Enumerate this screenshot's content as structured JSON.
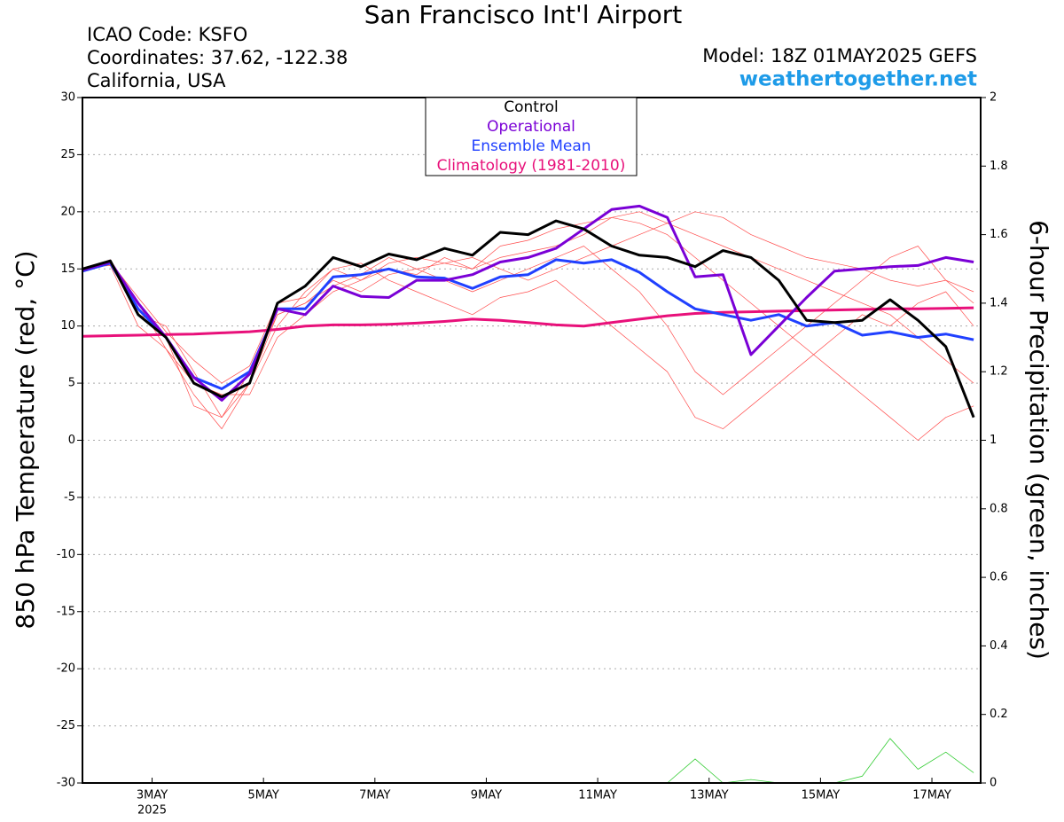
{
  "chart_data": {
    "type": "line",
    "title": "San Francisco Int'l Airport",
    "info_lines": [
      "ICAO Code: KSFO",
      "Coordinates: 37.62, -122.38",
      "California, USA"
    ],
    "model": "Model: 18Z 01MAY2025 GEFS",
    "site": "weathertogether.net",
    "ylabel": "850 hPa Temperature (red, °C)",
    "y2label": "6-hour Precipitation (green, inches)",
    "x": [
      1.75,
      2.25,
      2.75,
      3.25,
      3.75,
      4.25,
      4.75,
      5.25,
      5.75,
      6.25,
      6.75,
      7.25,
      7.75,
      8.25,
      8.75,
      9.25,
      9.75,
      10.25,
      10.75,
      11.25,
      11.75,
      12.25,
      12.75,
      13.25,
      13.75,
      14.25,
      14.75,
      15.25,
      15.75,
      16.25,
      16.75,
      17.25,
      17.75
    ],
    "xlim": [
      1.75,
      17.875
    ],
    "xticks": [
      {
        "value": 3,
        "label": "3MAY"
      },
      {
        "value": 5,
        "label": "5MAY"
      },
      {
        "value": 7,
        "label": "7MAY"
      },
      {
        "value": 9,
        "label": "9MAY"
      },
      {
        "value": 11,
        "label": "11MAY"
      },
      {
        "value": 13,
        "label": "13MAY"
      },
      {
        "value": 15,
        "label": "15MAY"
      },
      {
        "value": 17,
        "label": "17MAY"
      }
    ],
    "xtick_year": "2025",
    "ylim": [
      -30,
      30
    ],
    "yticks": [
      -30,
      -25,
      -20,
      -15,
      -10,
      -5,
      0,
      5,
      10,
      15,
      20,
      25,
      30
    ],
    "y2lim": [
      0,
      2
    ],
    "y2ticks": [
      0,
      0.2,
      0.4,
      0.6,
      0.8,
      1,
      1.2,
      1.4,
      1.6,
      1.8,
      2
    ],
    "grid": true,
    "series": [
      {
        "name": "Control",
        "color": "#000000",
        "width": 3,
        "values": [
          15,
          15.7,
          11,
          9,
          5,
          3.8,
          5,
          12,
          13.5,
          16,
          15.2,
          16.3,
          15.8,
          16.8,
          16.2,
          18.2,
          18,
          19.2,
          18.5,
          17,
          16.2,
          16,
          15.2,
          16.6,
          16,
          14,
          10.5,
          10.3,
          10.5,
          12.3,
          10.5,
          8.2,
          2
        ]
      },
      {
        "name": "Operational",
        "color": "#7a00d6",
        "width": 3,
        "values": [
          14.9,
          15.6,
          12,
          9,
          5.5,
          3.5,
          5.8,
          11.5,
          11,
          13.5,
          12.6,
          12.5,
          14,
          14,
          14.5,
          15.6,
          16,
          16.8,
          18.5,
          20.2,
          20.5,
          19.5,
          14.3,
          14.5,
          7.5,
          10,
          12.5,
          14.8,
          15,
          15.2,
          15.3,
          16,
          15.6
        ]
      },
      {
        "name": "Ensemble Mean",
        "color": "#2040ff",
        "width": 3,
        "values": [
          14.8,
          15.5,
          11.5,
          9,
          5.5,
          4.5,
          6,
          11.5,
          11.5,
          14.3,
          14.5,
          15,
          14.3,
          14.2,
          13.3,
          14.3,
          14.5,
          15.8,
          15.5,
          15.8,
          14.7,
          13,
          11.5,
          11,
          10.5,
          11,
          10,
          10.3,
          9.2,
          9.5,
          9,
          9.3,
          8.8
        ]
      },
      {
        "name": "Climatology (1981-2010)",
        "color": "#e8107a",
        "width": 3,
        "values": [
          9.1,
          9.15,
          9.2,
          9.25,
          9.3,
          9.4,
          9.5,
          9.7,
          10,
          10.1,
          10.1,
          10.15,
          10.25,
          10.4,
          10.6,
          10.5,
          10.3,
          10.1,
          10,
          10.3,
          10.6,
          10.9,
          11.1,
          11.2,
          11.25,
          11.3,
          11.35,
          11.4,
          11.45,
          11.5,
          11.5,
          11.55,
          11.6
        ]
      },
      {
        "color": "#33cc33",
        "width": 0.8,
        "axis": "y2",
        "values": [
          0,
          0,
          0,
          0,
          0,
          0,
          0,
          0,
          0,
          0,
          0,
          0,
          0,
          0,
          0,
          0,
          0,
          0,
          0,
          0,
          0,
          0,
          0.07,
          0,
          0.01,
          0,
          0,
          0,
          0.02,
          0.13,
          0.04,
          0.09,
          0.03
        ]
      },
      {
        "color": "#ff4d4d",
        "width": 0.7,
        "values": [
          15,
          15.8,
          12,
          8,
          4,
          1,
          5,
          10,
          13,
          15,
          14,
          15,
          14.5,
          16,
          15,
          17,
          17.5,
          18.5,
          19,
          19.5,
          19,
          18,
          16,
          14,
          12,
          10,
          8,
          6,
          4,
          2,
          0,
          2,
          3
        ]
      },
      {
        "color": "#ff4d4d",
        "width": 0.7,
        "values": [
          14.8,
          15.5,
          11,
          10,
          6,
          2,
          6,
          11,
          12,
          14,
          13,
          14.5,
          15,
          14,
          13,
          14,
          15,
          16,
          17,
          15,
          13,
          10,
          6,
          4,
          6,
          8,
          10,
          12,
          14,
          16,
          17,
          14,
          12
        ]
      },
      {
        "color": "#ff4d4d",
        "width": 0.7,
        "values": [
          15.1,
          15.3,
          10,
          8,
          5,
          4,
          4,
          9,
          11,
          13,
          14,
          15.5,
          16,
          15.5,
          15,
          16,
          16.5,
          17,
          18,
          19.5,
          20,
          19,
          18,
          17,
          16,
          15,
          14,
          13,
          12,
          11,
          9,
          7,
          5
        ]
      },
      {
        "color": "#ff4d4d",
        "width": 0.7,
        "values": [
          14.9,
          15.6,
          12.5,
          9.5,
          7,
          5,
          6.5,
          12,
          12.5,
          15,
          15.5,
          14,
          13,
          12,
          11,
          12.5,
          13,
          14,
          12,
          10,
          8,
          6,
          2,
          1,
          3,
          5,
          7,
          9,
          11,
          10,
          12,
          13,
          10
        ]
      },
      {
        "color": "#ff4d4d",
        "width": 0.7,
        "values": [
          15,
          15.4,
          11.5,
          9,
          3,
          2,
          5,
          11,
          12,
          13.5,
          14.5,
          16,
          15,
          15.5,
          16,
          15,
          14,
          15,
          16,
          17,
          18,
          19,
          20,
          19.5,
          18,
          17,
          16,
          15.5,
          15,
          14,
          13.5,
          14,
          13
        ]
      }
    ]
  }
}
